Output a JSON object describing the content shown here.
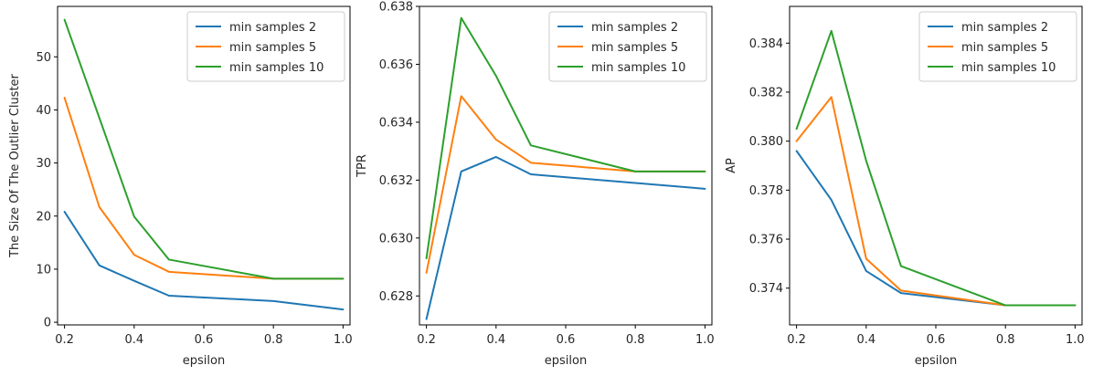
{
  "chart_data": [
    {
      "type": "line",
      "xlabel": "epsilon",
      "ylabel": "The Size Of The Outlier Cluster",
      "xlim": [
        0.18,
        1.02
      ],
      "ylim": [
        -0.5,
        59.5
      ],
      "xticks": [
        0.2,
        0.4,
        0.6,
        0.8,
        1.0
      ],
      "xtick_labels": [
        "0.2",
        "0.4",
        "0.6",
        "0.8",
        "1.0"
      ],
      "yticks": [
        0,
        10,
        20,
        30,
        40,
        50
      ],
      "ytick_labels": [
        "0",
        "10",
        "20",
        "30",
        "40",
        "50"
      ],
      "grid": false,
      "legend_position": "top-right",
      "x": [
        0.2,
        0.3,
        0.4,
        0.5,
        0.8,
        1.0
      ],
      "series": [
        {
          "name": "min samples 2",
          "color": "#1f77b4",
          "values": [
            20.8,
            10.7,
            7.8,
            5.0,
            4.0,
            2.4
          ]
        },
        {
          "name": "min samples 5",
          "color": "#ff7f0e",
          "values": [
            42.3,
            21.7,
            12.7,
            9.5,
            8.2,
            8.2
          ]
        },
        {
          "name": "min samples 10",
          "color": "#2ca02c",
          "values": [
            57.0,
            38.5,
            19.9,
            11.8,
            8.2,
            8.2
          ]
        }
      ]
    },
    {
      "type": "line",
      "xlabel": "epsilon",
      "ylabel": "TPR",
      "xlim": [
        0.18,
        1.02
      ],
      "ylim": [
        0.627,
        0.638
      ],
      "xticks": [
        0.2,
        0.4,
        0.6,
        0.8,
        1.0
      ],
      "xtick_labels": [
        "0.2",
        "0.4",
        "0.6",
        "0.8",
        "1.0"
      ],
      "yticks": [
        0.628,
        0.63,
        0.632,
        0.634,
        0.636,
        0.638
      ],
      "ytick_labels": [
        "0.628",
        "0.630",
        "0.632",
        "0.634",
        "0.636",
        "0.638"
      ],
      "grid": false,
      "legend_position": "top-right",
      "x": [
        0.2,
        0.3,
        0.4,
        0.5,
        0.8,
        1.0
      ],
      "series": [
        {
          "name": "min samples 2",
          "color": "#1f77b4",
          "values": [
            0.6272,
            0.6323,
            0.6328,
            0.6322,
            0.6319,
            0.6317
          ]
        },
        {
          "name": "min samples 5",
          "color": "#ff7f0e",
          "values": [
            0.6288,
            0.6349,
            0.6334,
            0.6326,
            0.6323,
            0.6323
          ]
        },
        {
          "name": "min samples 10",
          "color": "#2ca02c",
          "values": [
            0.6293,
            0.6376,
            0.6356,
            0.6332,
            0.6323,
            0.6323
          ]
        }
      ]
    },
    {
      "type": "line",
      "xlabel": "epsilon",
      "ylabel": "AP",
      "xlim": [
        0.18,
        1.02
      ],
      "ylim": [
        0.3725,
        0.3855
      ],
      "xticks": [
        0.2,
        0.4,
        0.6,
        0.8,
        1.0
      ],
      "xtick_labels": [
        "0.2",
        "0.4",
        "0.6",
        "0.8",
        "1.0"
      ],
      "yticks": [
        0.374,
        0.376,
        0.378,
        0.38,
        0.382,
        0.384
      ],
      "ytick_labels": [
        "0.374",
        "0.376",
        "0.378",
        "0.380",
        "0.382",
        "0.384"
      ],
      "grid": false,
      "legend_position": "top-right",
      "x": [
        0.2,
        0.3,
        0.4,
        0.5,
        0.8,
        1.0
      ],
      "series": [
        {
          "name": "min samples 2",
          "color": "#1f77b4",
          "values": [
            0.3796,
            0.3776,
            0.3747,
            0.3738,
            0.3733,
            0.3733
          ]
        },
        {
          "name": "min samples 5",
          "color": "#ff7f0e",
          "values": [
            0.38,
            0.3818,
            0.3752,
            0.3739,
            0.3733,
            0.3733
          ]
        },
        {
          "name": "min samples 10",
          "color": "#2ca02c",
          "values": [
            0.3805,
            0.3845,
            0.3792,
            0.3749,
            0.3733,
            0.3733
          ]
        }
      ]
    }
  ]
}
